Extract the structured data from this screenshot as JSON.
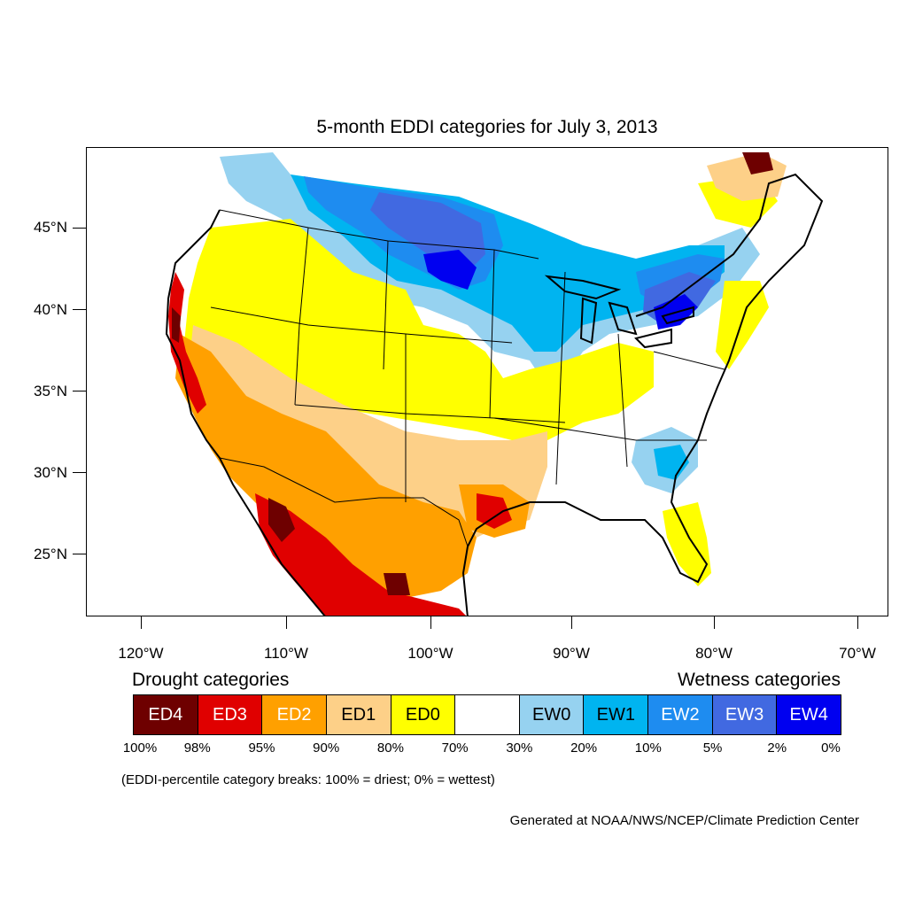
{
  "title": "5-month EDDI categories for July 3, 2013",
  "map": {
    "lat_labels": [
      "45°N",
      "40°N",
      "35°N",
      "30°N",
      "25°N"
    ],
    "lon_labels": [
      "120°W",
      "110°W",
      "100°W",
      "90°W",
      "80°W",
      "70°W"
    ],
    "regions": [
      {
        "category": "EW2",
        "area": "northern Great Plains and Upper Midwest"
      },
      {
        "category": "EW3",
        "area": "northern Great Plains core"
      },
      {
        "category": "EW4",
        "area": "Dakotas and southern Ontario"
      },
      {
        "category": "EW1",
        "area": "Great Lakes and upper Mississippi"
      },
      {
        "category": "EW0",
        "area": "Great Lakes fringe and Carolinas"
      },
      {
        "category": "ED0",
        "area": "Central Plains, Ohio Valley, Florida, Northern Rockies"
      },
      {
        "category": "ED1",
        "area": "Southern Plains and Southwest"
      },
      {
        "category": "ED2",
        "area": "Arizona, New Mexico, Texas, California"
      },
      {
        "category": "ED3",
        "area": "Northern Mexico, California coast, Texas"
      },
      {
        "category": "ED4",
        "area": "Sonora, northern California, Quebec"
      }
    ]
  },
  "legend": {
    "drought_title": "Drought categories",
    "wetness_title": "Wetness categories",
    "categories": [
      {
        "label": "ED4",
        "color": "#6e0000",
        "text_color": "#ffffff"
      },
      {
        "label": "ED3",
        "color": "#e00000",
        "text_color": "#ffffff"
      },
      {
        "label": "ED2",
        "color": "#ffa000",
        "text_color": "#ffffff"
      },
      {
        "label": "ED1",
        "color": "#fdd088",
        "text_color": "#000000"
      },
      {
        "label": "ED0",
        "color": "#ffff00",
        "text_color": "#000000"
      },
      {
        "label": "",
        "color": "#ffffff",
        "text_color": "#000000"
      },
      {
        "label": "EW0",
        "color": "#96d2f0",
        "text_color": "#000000"
      },
      {
        "label": "EW1",
        "color": "#00b4f0",
        "text_color": "#000000"
      },
      {
        "label": "EW2",
        "color": "#1e8cf0",
        "text_color": "#ffffff"
      },
      {
        "label": "EW3",
        "color": "#4169e1",
        "text_color": "#ffffff"
      },
      {
        "label": "EW4",
        "color": "#0000f0",
        "text_color": "#ffffff"
      }
    ],
    "breaks": [
      "100%",
      "98%",
      "95%",
      "90%",
      "80%",
      "70%",
      "30%",
      "20%",
      "10%",
      "5%",
      "2%",
      "0%"
    ]
  },
  "note": "(EDDI-percentile category breaks: 100% = driest; 0% = wettest)",
  "credit": "Generated at NOAA/NWS/NCEP/Climate Prediction Center"
}
